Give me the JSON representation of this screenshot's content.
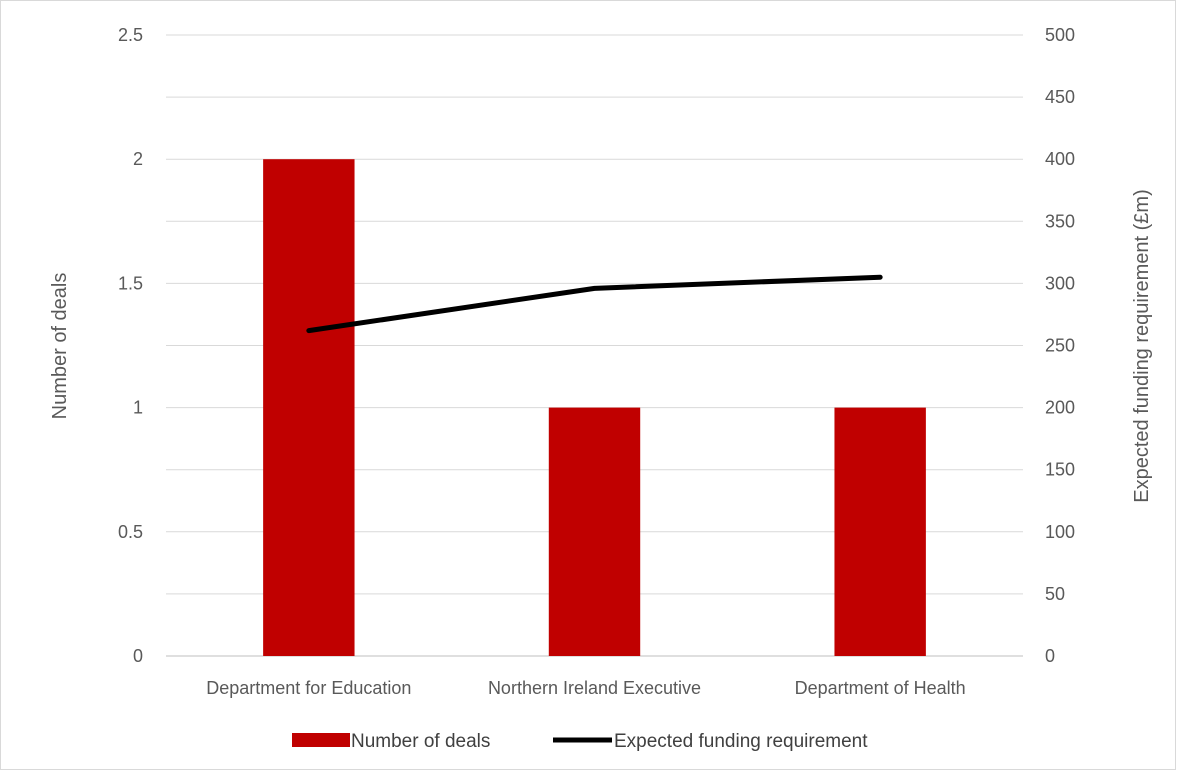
{
  "chart_data": {
    "type": "bar",
    "categories": [
      "Department for Education",
      "Northern Ireland Executive",
      "Department of Health"
    ],
    "series": [
      {
        "name": "Number of deals",
        "type": "bar",
        "axis": "left",
        "values": [
          2,
          1,
          1
        ],
        "color": "#c00000"
      },
      {
        "name": "Expected funding requirement",
        "type": "line",
        "axis": "right",
        "values": [
          262,
          296,
          305
        ],
        "color": "#000000"
      }
    ],
    "y_left": {
      "label": "Number of deals",
      "ylim": [
        0,
        2.5
      ],
      "ticks": [
        "0",
        "0.5",
        "1",
        "1.5",
        "2",
        "2.5"
      ]
    },
    "y_right": {
      "label": "Expected funding requirement (£m)",
      "ylim": [
        0,
        500
      ],
      "ticks": [
        "0",
        "50",
        "100",
        "150",
        "200",
        "250",
        "300",
        "350",
        "400",
        "450",
        "500"
      ]
    },
    "grid": true,
    "legend_position": "bottom"
  }
}
